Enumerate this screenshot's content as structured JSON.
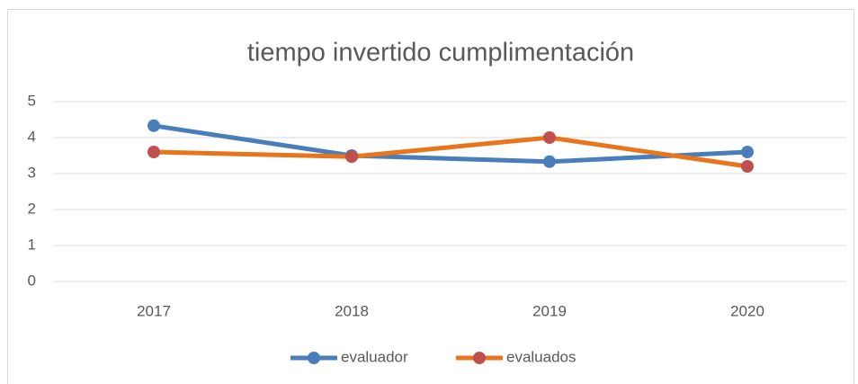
{
  "chart_data": {
    "type": "line",
    "title": "tiempo invertido cumplimentación",
    "categories": [
      "2017",
      "2018",
      "2019",
      "2020"
    ],
    "series": [
      {
        "name": "evaluador",
        "color": "#4a7ebb",
        "marker_color": "#4a7ebb",
        "values": [
          4.33,
          3.5,
          3.33,
          3.6
        ]
      },
      {
        "name": "evaluados",
        "color": "#e8741c",
        "marker_color": "#c0504d",
        "values": [
          3.6,
          3.47,
          4.0,
          3.2
        ]
      }
    ],
    "ylim": [
      0,
      5
    ],
    "yticks": [
      0,
      1,
      2,
      3,
      4,
      5
    ],
    "grid": true,
    "legend": "bottom"
  }
}
